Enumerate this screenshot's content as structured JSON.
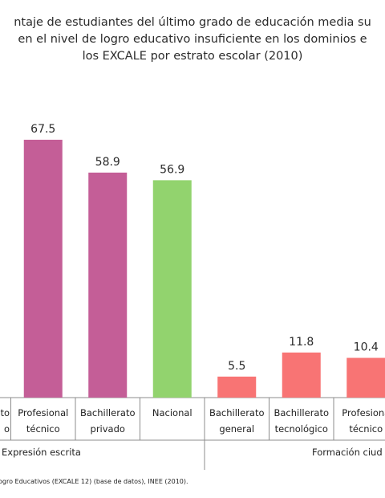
{
  "chart_data": {
    "type": "bar",
    "title_lines": [
      "ntaje de estudiantes del último grado de educación media su",
      "en el nivel de logro educativo insuficiente en los dominios e",
      "los EXCALE por estrato escolar (2010)"
    ],
    "groups": [
      {
        "name": "Expresión escrita",
        "bars": [
          {
            "category": [
              "to",
              "o"
            ],
            "value": null,
            "color": "#C45E97"
          },
          {
            "category": [
              "Profesional",
              "técnico"
            ],
            "value": 67.5,
            "color": "#C45E97"
          },
          {
            "category": [
              "Bachillerato",
              "privado"
            ],
            "value": 58.9,
            "color": "#C45E97"
          },
          {
            "category": [
              "Nacional"
            ],
            "value": 56.9,
            "color": "#92D36E"
          }
        ]
      },
      {
        "name": "Formación ciud",
        "bars": [
          {
            "category": [
              "Bachillerato",
              "general"
            ],
            "value": 5.5,
            "color": "#F87474"
          },
          {
            "category": [
              "Bachillerato",
              "tecnológico"
            ],
            "value": 11.8,
            "color": "#F87474"
          },
          {
            "category": [
              "Profesiona",
              "técnico"
            ],
            "value": 10.4,
            "color": "#F87474"
          }
        ]
      }
    ],
    "ylim": [
      0,
      75
    ],
    "grid": false,
    "source": "ogro Educativos (EXCALE 12) (base de datos), INEE (2010)."
  }
}
